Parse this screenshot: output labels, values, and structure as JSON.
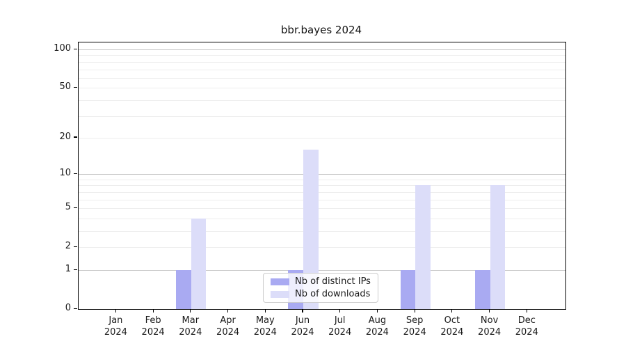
{
  "title": "bbr.bayes 2024",
  "colors": {
    "distinct_ips": "#a9aaf2",
    "downloads": "#dcddf9",
    "grid_minor": "#ededed",
    "grid_major": "#c6c6c6",
    "axis": "#000000"
  },
  "legend": {
    "items": [
      {
        "label": "Nb of distinct IPs",
        "color_key": "distinct_ips"
      },
      {
        "label": "Nb of downloads",
        "color_key": "downloads"
      }
    ]
  },
  "chart_data": {
    "type": "bar",
    "title": "bbr.bayes 2024",
    "scale": "log10(value+1)",
    "categories": [
      "Jan",
      "Feb",
      "Mar",
      "Apr",
      "May",
      "Jun",
      "Jul",
      "Aug",
      "Sep",
      "Oct",
      "Nov",
      "Dec"
    ],
    "year": "2024",
    "series": [
      {
        "name": "Nb of distinct IPs",
        "color_key": "distinct_ips",
        "values": [
          0,
          0,
          1,
          0,
          0,
          1,
          0,
          0,
          1,
          0,
          1,
          0
        ]
      },
      {
        "name": "Nb of downloads",
        "color_key": "downloads",
        "values": [
          0,
          0,
          4,
          0,
          0,
          16,
          0,
          0,
          8,
          0,
          8,
          0
        ]
      }
    ],
    "y_ticks": [
      0,
      1,
      2,
      5,
      10,
      20,
      50,
      100
    ],
    "major_gridlines": [
      1,
      10,
      100
    ],
    "minor_gridlines": [
      2,
      3,
      4,
      5,
      6,
      7,
      8,
      9,
      20,
      30,
      40,
      50,
      60,
      70,
      80,
      90
    ],
    "ylim": [
      0,
      100
    ],
    "xlabel": "",
    "ylabel": "",
    "grid": true,
    "legend_position": "lower center"
  }
}
